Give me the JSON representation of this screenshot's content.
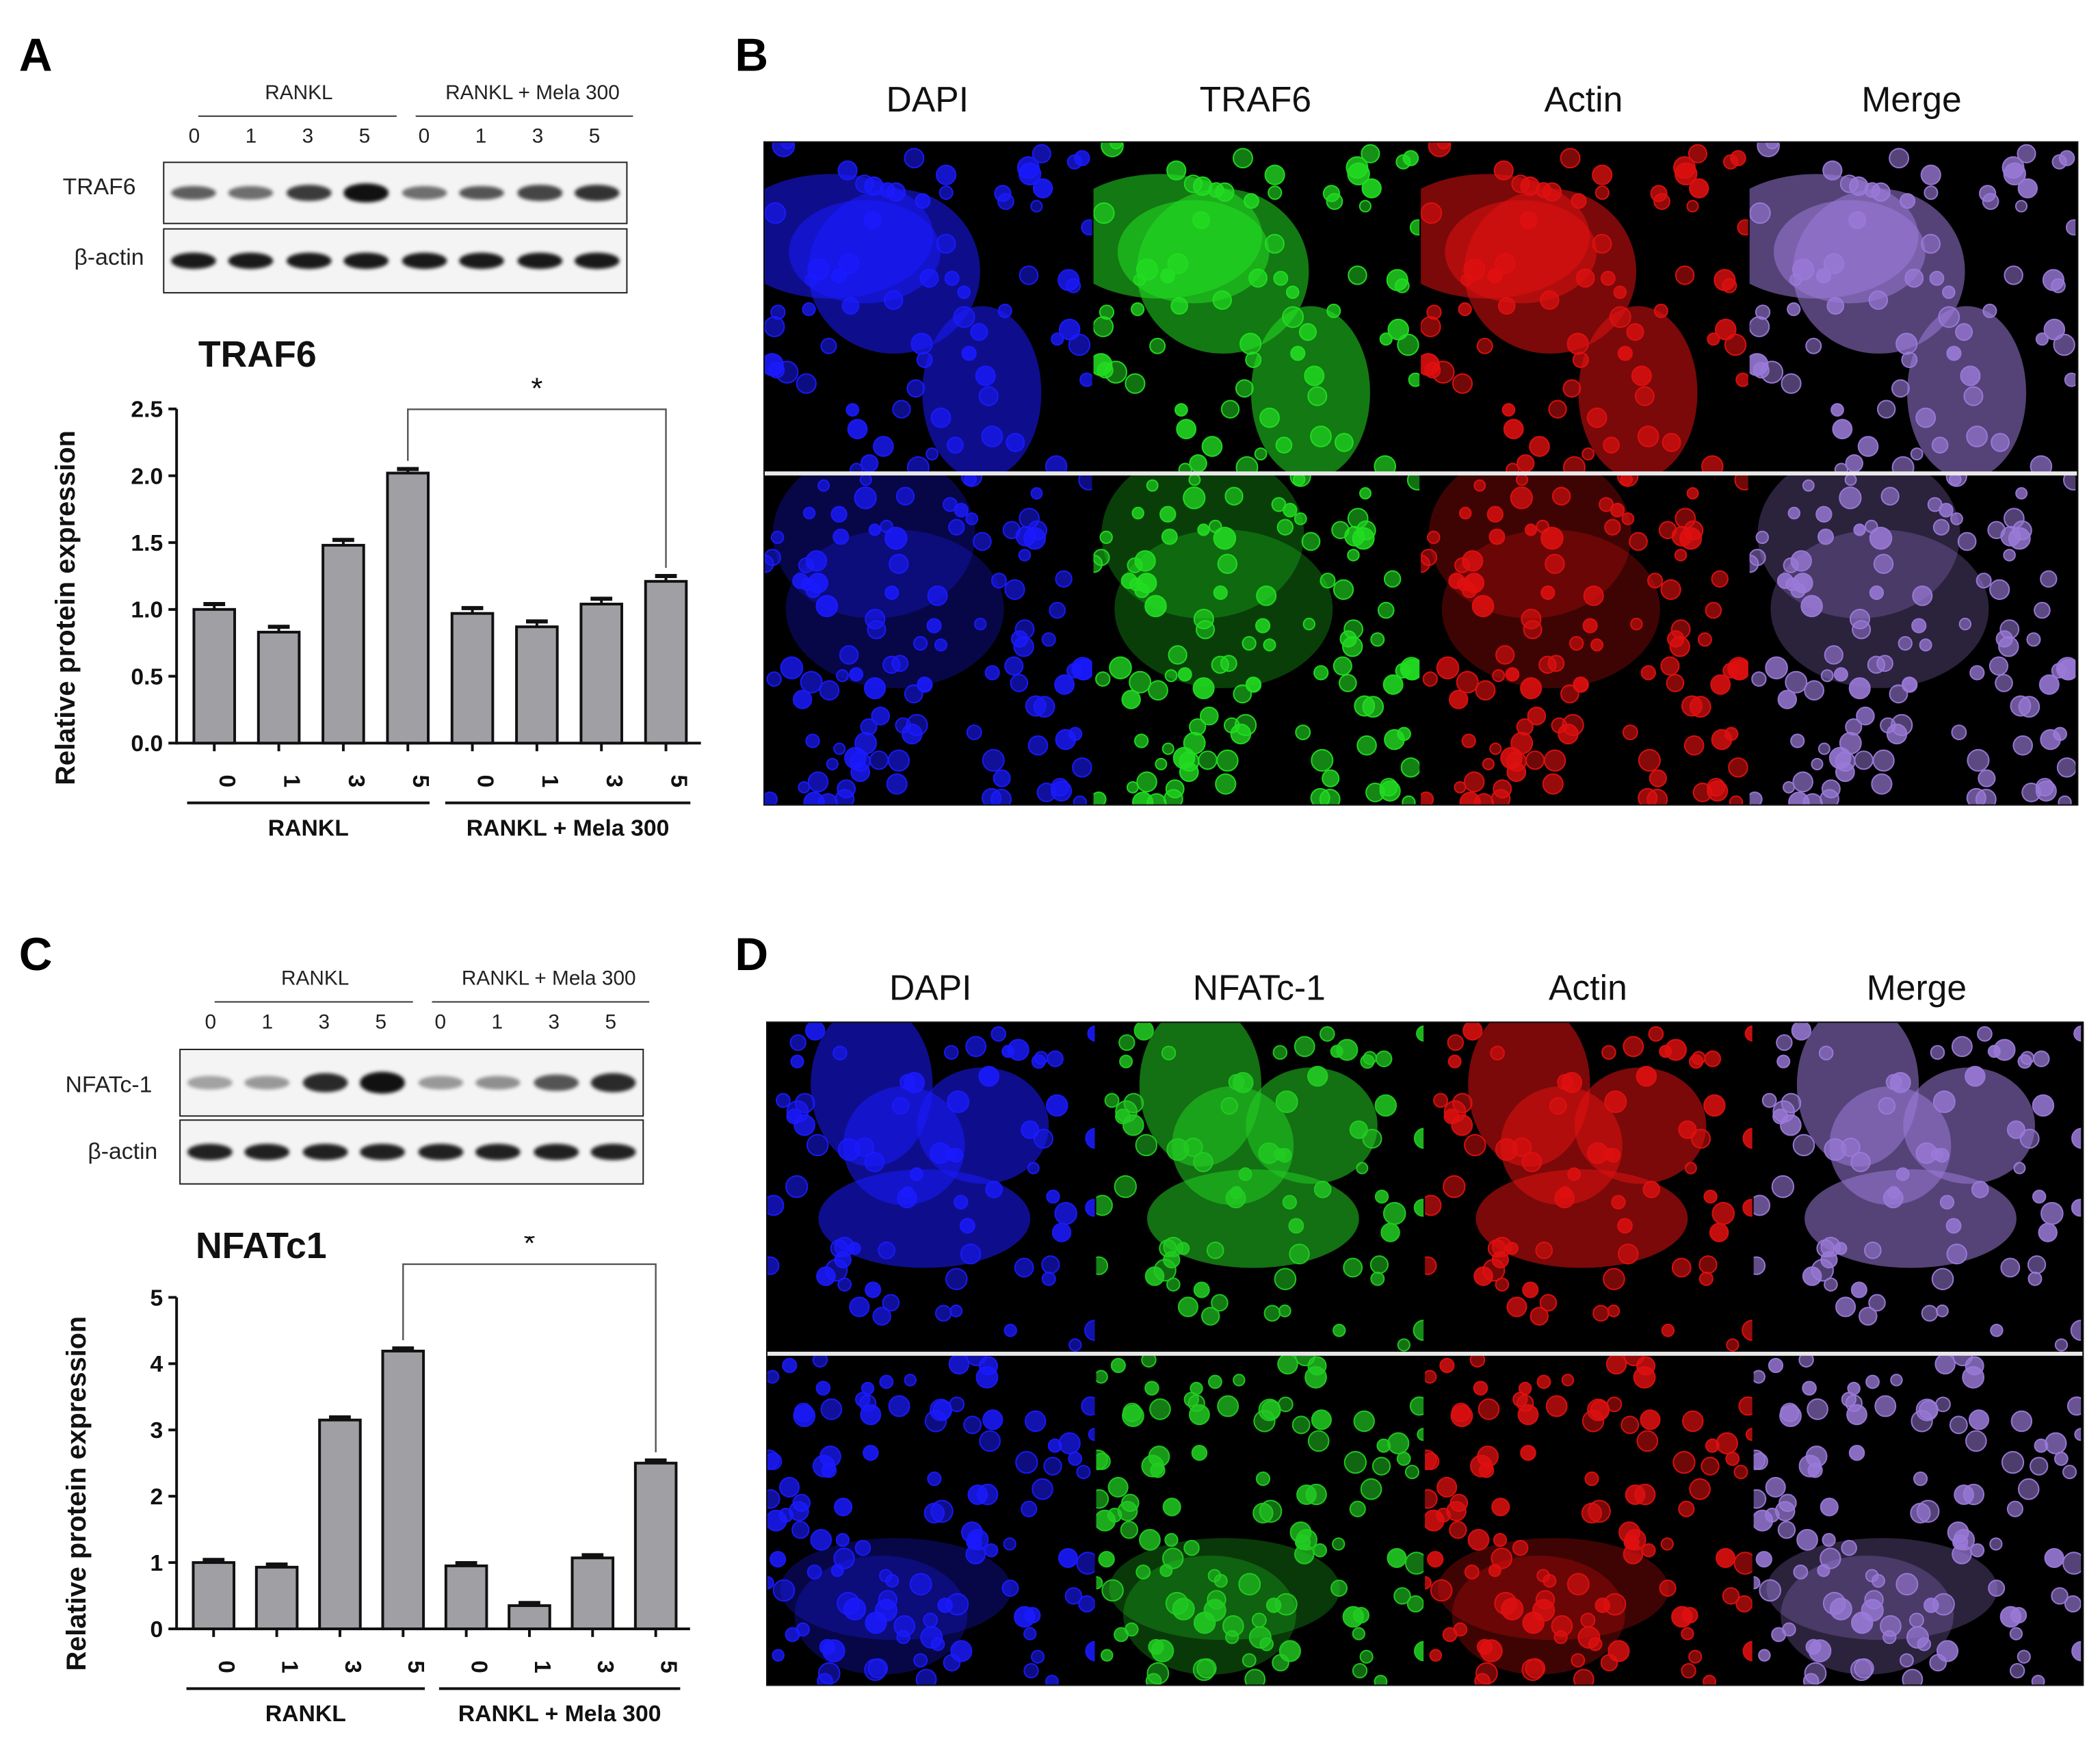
{
  "panels": {
    "A": {
      "letter": "A",
      "blot": {
        "group_labels": [
          "RANKL",
          "RANKL + Mela 300"
        ],
        "lanes": [
          "0",
          "1",
          "3",
          "5",
          "0",
          "1",
          "3",
          "5"
        ],
        "rows": [
          {
            "label": "TRAF6",
            "intensities": [
              0.55,
              0.45,
              0.75,
              1.0,
              0.45,
              0.6,
              0.7,
              0.8
            ]
          },
          {
            "label": "β-actin",
            "intensities": [
              0.95,
              0.95,
              0.95,
              0.95,
              0.95,
              0.95,
              0.95,
              0.95
            ]
          }
        ]
      },
      "group_lines": [
        "RANKL",
        "RANKL + Mela 300"
      ]
    },
    "B": {
      "letter": "B",
      "channels": [
        "DAPI",
        "TRAF6",
        "Actin",
        "Merge"
      ],
      "colors": [
        "#1a1aff",
        "#22dd22",
        "#e01010",
        "#9a7ad8"
      ]
    },
    "C": {
      "letter": "C",
      "blot": {
        "group_labels": [
          "RANKL",
          "RANKL + Mela 300"
        ],
        "lanes": [
          "0",
          "1",
          "3",
          "5",
          "0",
          "1",
          "3",
          "5"
        ],
        "rows": [
          {
            "label": "NFATc-1",
            "intensities": [
              0.15,
              0.2,
              0.85,
              1.0,
              0.2,
              0.25,
              0.6,
              0.85
            ]
          },
          {
            "label": "β-actin",
            "intensities": [
              0.9,
              0.9,
              0.9,
              0.9,
              0.9,
              0.9,
              0.9,
              0.9
            ]
          }
        ]
      }
    },
    "D": {
      "letter": "D",
      "channels": [
        "DAPI",
        "NFATc-1",
        "Actin",
        "Merge"
      ],
      "colors": [
        "#1a1aff",
        "#22cc22",
        "#e01010",
        "#9a7ad8"
      ]
    }
  },
  "chart_data": [
    {
      "type": "bar",
      "title": "TRAF6",
      "ylabel": "Relative protein expression",
      "categories": [
        "0",
        "1",
        "3",
        "5",
        "0",
        "1",
        "3",
        "5"
      ],
      "groups": [
        "RANKL",
        "RANKL + Mela 300"
      ],
      "values": [
        1.0,
        0.83,
        1.48,
        2.02,
        0.97,
        0.87,
        1.04,
        1.21
      ],
      "errors": [
        0.04,
        0.04,
        0.04,
        0.03,
        0.04,
        0.04,
        0.04,
        0.04
      ],
      "ylim": [
        0,
        2.5
      ],
      "yticks": [
        "0.0",
        "0.5",
        "1.0",
        "1.5",
        "2.0",
        "2.5"
      ],
      "significance": "*",
      "bar_color": "#a0a0a4"
    },
    {
      "type": "bar",
      "title": "NFATc1",
      "ylabel": "Relative protein expression",
      "categories": [
        "0",
        "1",
        "3",
        "5",
        "0",
        "1",
        "3",
        "5"
      ],
      "groups": [
        "RANKL",
        "RANKL + Mela 300"
      ],
      "values": [
        1.0,
        0.93,
        3.15,
        4.19,
        0.95,
        0.35,
        1.07,
        2.5
      ],
      "errors": [
        0.04,
        0.04,
        0.04,
        0.04,
        0.04,
        0.04,
        0.04,
        0.04
      ],
      "ylim": [
        0,
        5
      ],
      "yticks": [
        "0",
        "1",
        "2",
        "3",
        "4",
        "5"
      ],
      "significance": "*",
      "bar_color": "#a0a0a4"
    }
  ]
}
